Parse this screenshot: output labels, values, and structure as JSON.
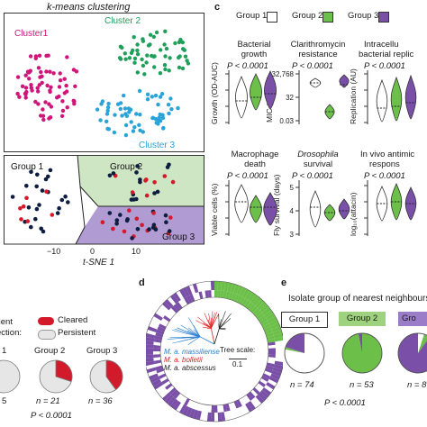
{
  "panel_a": {
    "title": "k-means clustering",
    "cluster_labels": [
      "Cluster1",
      "Cluster 2",
      "Cluster 3"
    ],
    "cluster_colors": [
      "#d0157a",
      "#1fa05a",
      "#2aa3d6"
    ]
  },
  "panel_b": {
    "group_labels": [
      "Group 1",
      "Group 2",
      "Group 3"
    ],
    "xticks": [
      "−10",
      "0",
      "10"
    ],
    "xlabel": "t-SNE 1",
    "point_colors": {
      "persistent": "#0d1d3f",
      "cleared": "#d21a2a"
    },
    "region_colors": {
      "group2": "#cfe6c4",
      "group3": "#b19bd3"
    }
  },
  "panel_c": {
    "letter": "c",
    "legend": [
      "Group 1",
      "Group 2",
      "Group 3"
    ],
    "group_colors": [
      "#ffffff",
      "#6cc04a",
      "#7a4fa8"
    ],
    "top_row": [
      {
        "title1": "Bacterial",
        "title2": "growth",
        "p": "P < 0.0001",
        "ylabel": "Growth (OD-AUC)",
        "yticks": []
      },
      {
        "title1": "Clarithromycin",
        "title2": "resistance",
        "p": "P < 0.0001",
        "ylabel": "MIC (μg ml⁻¹)",
        "yticks": [
          "32,768",
          "32",
          "0.03"
        ]
      },
      {
        "title1": "Intracellu",
        "title2": "bacterial replic",
        "p": "P < 0.0001",
        "ylabel": "Replication (AU)",
        "yticks": []
      }
    ],
    "bottom_row": [
      {
        "title1": "Macrophage",
        "title2": "death",
        "p": "P < 0.0001",
        "ylabel": "Viable cells (%)",
        "yticks": []
      },
      {
        "title1": "Drosophila",
        "title2": "survival",
        "p": "P < 0.0001",
        "ylabel": "Fly survival (days)",
        "yticks": [
          "5",
          "4",
          "3"
        ]
      },
      {
        "title1": "In vivo antimic",
        "title2": "respons",
        "p": "P < 0.0001",
        "ylabel": "log₁₀(attacin)",
        "yticks": []
      }
    ]
  },
  "panel_left_bottom": {
    "header1": "tient",
    "header2": "ection:",
    "legend_cleared": "Cleared",
    "legend_persistent": "Persistent",
    "groups": [
      "1",
      "Group 2",
      "Group 3"
    ],
    "ns": [
      "5",
      "n = 21",
      "n = 36"
    ],
    "cleared_fractions": [
      null,
      0.3,
      0.4
    ],
    "p": "P < 0.0001",
    "colors": {
      "cleared": "#d21a2a",
      "persistent": "#e6e6e6"
    }
  },
  "panel_d": {
    "letter": "d",
    "legend": [
      "M. a. massiliense",
      "M. a. bolletii",
      "M. a. abscessus"
    ],
    "legend_colors": [
      "#2a7fd0",
      "#e02020",
      "#222222"
    ],
    "scale_label": "Tree scale:",
    "scale_value": "0.1"
  },
  "panel_e": {
    "letter": "e",
    "title": "Isolate group of nearest neighbours",
    "groups": [
      "Group 1",
      "Group 2",
      "Gro"
    ],
    "ns": [
      "n = 74",
      "n = 53",
      "n = 8"
    ],
    "p": "P < 0.0001",
    "fractions": [
      {
        "white": 0.78,
        "green": 0.02,
        "purple": 0.2
      },
      {
        "white": 0.0,
        "green": 0.97,
        "purple": 0.03
      },
      {
        "white": 0.05,
        "green": 0.05,
        "purple": 0.9
      }
    ]
  }
}
